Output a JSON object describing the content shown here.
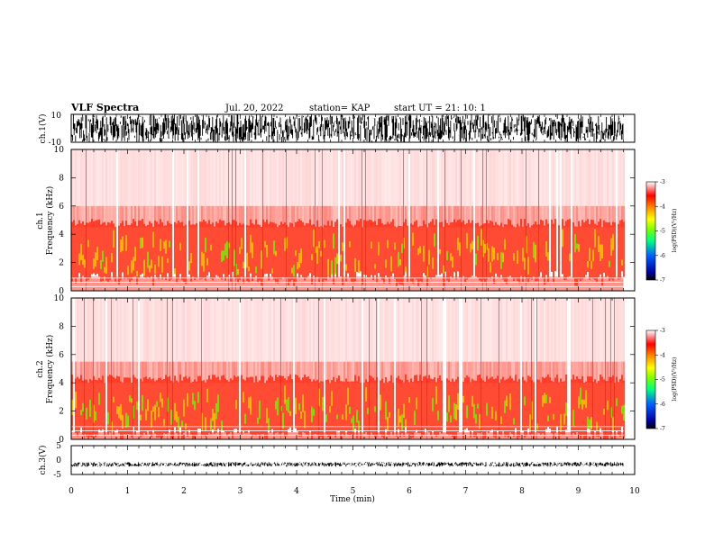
{
  "header": {
    "title": "VLF Spectra",
    "date": "Jul. 20, 2022",
    "station": "station= KAP",
    "start": "start  UT =   21: 10: 1"
  },
  "chart_data": [
    {
      "type": "line",
      "panel": "ch1-waveform",
      "ylabel": "ch.1(V)",
      "ylim": [
        -10,
        10
      ],
      "ytick_labels": [
        "10",
        "-10"
      ],
      "xlim": [
        0,
        10
      ],
      "data_end_min": 9.8,
      "description_values": {
        "amplitude_envelope_V": [
          -10,
          10
        ]
      }
    },
    {
      "type": "heatmap",
      "panel": "ch1-spectrogram",
      "ylabel": "ch.1",
      "ylabel2": "Frequency  (kHz)",
      "ylim": [
        0,
        10
      ],
      "ytick_labels": [
        "0",
        "2",
        "4",
        "6",
        "8",
        "10"
      ],
      "xlim": [
        0,
        10
      ],
      "data_end_min": 9.8,
      "band_profile_kHz": {
        "strong_low": 1.0,
        "strong_high": 4.5,
        "fade_top": 10
      }
    },
    {
      "type": "heatmap",
      "panel": "ch2-spectrogram",
      "ylabel": "ch.2",
      "ylabel2": "Frequency  (kHz)",
      "ylim": [
        0,
        10
      ],
      "ytick_labels": [
        "0",
        "2",
        "4",
        "6",
        "8",
        "10"
      ],
      "xlim": [
        0,
        10
      ],
      "data_end_min": 9.8,
      "band_profile_kHz": {
        "strong_low": 0.5,
        "strong_high": 4.0,
        "fade_top": 10
      }
    },
    {
      "type": "line",
      "panel": "ch3-waveform",
      "ylabel": "ch.3(V)",
      "ylim": [
        -5,
        5
      ],
      "ytick_labels": [
        "5",
        "0",
        "-5"
      ],
      "xlim": [
        0,
        10
      ],
      "data_end_min": 9.8,
      "description_values": {
        "amplitude_envelope_V": [
          -0.8,
          0.8
        ],
        "offset_V": -1.5
      }
    }
  ],
  "x_axis": {
    "label": "Time  (min)",
    "ticks": [
      "0",
      "1",
      "2",
      "3",
      "4",
      "5",
      "6",
      "7",
      "8",
      "9",
      "10"
    ]
  },
  "colorbars": [
    {
      "label": "log(PSD)(V²/Hz)",
      "ticks": [
        "-3",
        "-4",
        "-5",
        "-6",
        "-7"
      ],
      "range": [
        -7,
        -3
      ]
    },
    {
      "label": "log(PSD)(V²/Hz)",
      "ticks": [
        "-3",
        "-4",
        "-5",
        "-6",
        "-7"
      ],
      "range": [
        -7,
        -3
      ]
    }
  ],
  "colors": {
    "colormap": [
      "#ffffff",
      "#ff0000",
      "#ffff00",
      "#00ff00",
      "#0000ff",
      "#000000"
    ]
  }
}
